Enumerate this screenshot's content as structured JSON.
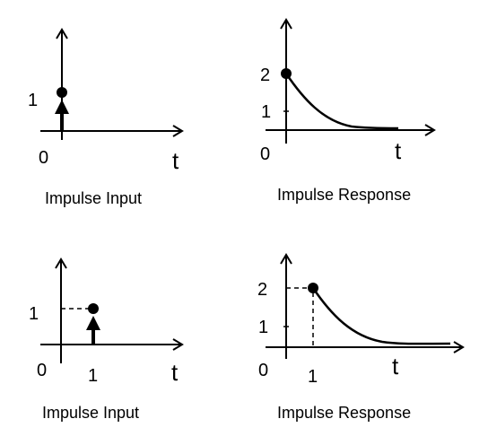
{
  "panels": [
    {
      "caption": "Impulse Input",
      "origin_label": "0",
      "axis_label": "t",
      "y_tick_labels": [
        "1"
      ],
      "x_tick_labels": []
    },
    {
      "caption": "Impulse Response",
      "origin_label": "0",
      "axis_label": "t",
      "y_tick_labels": [
        "2",
        "1"
      ],
      "x_tick_labels": []
    },
    {
      "caption": "Impulse Input",
      "origin_label": "0",
      "axis_label": "t",
      "y_tick_labels": [
        "1"
      ],
      "x_tick_labels": [
        "1"
      ]
    },
    {
      "caption": "Impulse Response",
      "origin_label": "0",
      "axis_label": "t",
      "y_tick_labels": [
        "2",
        "1"
      ],
      "x_tick_labels": [
        "1"
      ]
    }
  ]
}
